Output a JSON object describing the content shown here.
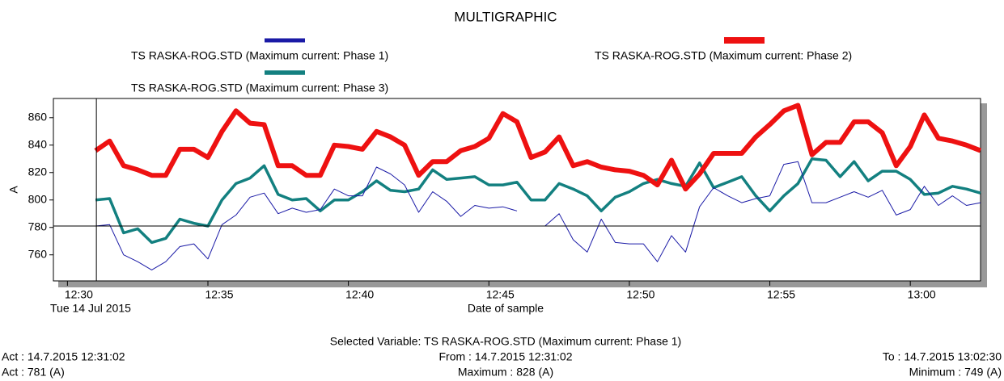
{
  "chart_data": {
    "type": "line",
    "title": "MULTIGRAPHIC",
    "xlabel": "Date of sample",
    "x_sublabel": "Tue 14 Jul 2015",
    "ylabel": "A",
    "xlim": [
      29.5,
      62.5
    ],
    "xticks": [
      {
        "value": 30,
        "label": "12:30"
      },
      {
        "value": 35,
        "label": "12:35"
      },
      {
        "value": 40,
        "label": "12:40"
      },
      {
        "value": 45,
        "label": "12:45"
      },
      {
        "value": 50,
        "label": "12:50"
      },
      {
        "value": 55,
        "label": "12:55"
      },
      {
        "value": 60,
        "label": "13:00"
      }
    ],
    "ylim": [
      741,
      874
    ],
    "yticks": [
      760,
      780,
      800,
      820,
      840,
      860
    ],
    "grid": false,
    "x": [
      31,
      31.5,
      32,
      32.5,
      33,
      33.5,
      34,
      34.5,
      35,
      35.5,
      36,
      36.5,
      37,
      37.5,
      38,
      38.5,
      39,
      39.5,
      40,
      40.5,
      41,
      41.5,
      42,
      42.5,
      43,
      43.5,
      44,
      44.5,
      45,
      45.5,
      46,
      46.5,
      47,
      47.5,
      48,
      48.5,
      49,
      49.5,
      50,
      50.5,
      51,
      51.5,
      52,
      52.5,
      53,
      53.5,
      54,
      54.5,
      55,
      55.5,
      56,
      56.5,
      57,
      57.5,
      58,
      58.5,
      59,
      59.5,
      60,
      60.5,
      61,
      61.5,
      62,
      62.5
    ],
    "series": [
      {
        "name": "TS RASKA-ROG.STD (Maximum current: Phase 1)",
        "color": "#1a1aa6",
        "width": 1,
        "values": [
          781,
          782,
          760,
          755,
          749,
          755,
          766,
          768,
          757,
          782,
          789,
          802,
          805,
          790,
          794,
          791,
          793,
          808,
          803,
          803,
          824,
          819,
          811,
          791,
          806,
          799,
          788,
          796,
          794,
          795,
          792,
          null,
          781,
          790,
          771,
          762,
          786,
          769,
          768,
          768,
          755,
          774,
          762,
          795,
          809,
          803,
          798,
          801,
          803,
          826,
          828,
          798,
          798,
          802,
          806,
          802,
          807,
          789,
          793,
          810,
          796,
          803,
          796,
          798
        ]
      },
      {
        "name": "TS RASKA-ROG.STD (Maximum current: Phase 2)",
        "color": "#ee1111",
        "width": 6,
        "values": [
          836,
          843,
          825,
          822,
          818,
          818,
          837,
          837,
          831,
          850,
          865,
          856,
          855,
          825,
          825,
          818,
          818,
          840,
          839,
          837,
          850,
          846,
          840,
          818,
          828,
          828,
          836,
          839,
          845,
          863,
          857,
          831,
          835,
          846,
          825,
          828,
          824,
          822,
          821,
          818,
          811,
          829,
          808,
          819,
          834,
          834,
          834,
          846,
          855,
          865,
          869,
          833,
          842,
          842,
          857,
          857,
          849,
          825,
          839,
          862,
          845,
          843,
          840,
          836
        ]
      },
      {
        "name": "TS RASKA-ROG.STD (Maximum current: Phase 3)",
        "color": "#138080",
        "width": 3.5,
        "values": [
          800,
          801,
          776,
          779,
          769,
          772,
          786,
          783,
          781,
          800,
          812,
          816,
          825,
          804,
          800,
          801,
          792,
          800,
          800,
          806,
          814,
          807,
          806,
          808,
          822,
          815,
          816,
          817,
          811,
          811,
          813,
          800,
          800,
          812,
          808,
          803,
          792,
          802,
          806,
          812,
          815,
          812,
          810,
          827,
          809,
          813,
          817,
          803,
          792,
          803,
          812,
          830,
          829,
          817,
          828,
          814,
          821,
          821,
          815,
          804,
          805,
          810,
          808,
          805
        ]
      }
    ],
    "cursor": {
      "x": 31.03,
      "y": 781
    }
  },
  "footer": {
    "selected": "Selected Variable: TS RASKA-ROG.STD (Maximum current: Phase 1)",
    "act_time": "Act : 14.7.2015 12:31:02",
    "from": "From : 14.7.2015 12:31:02",
    "to": "To : 14.7.2015 13:02:30",
    "act_value": "Act : 781 (A)",
    "maximum": "Maximum : 828 (A)",
    "minimum": "Minimum : 749 (A)"
  }
}
